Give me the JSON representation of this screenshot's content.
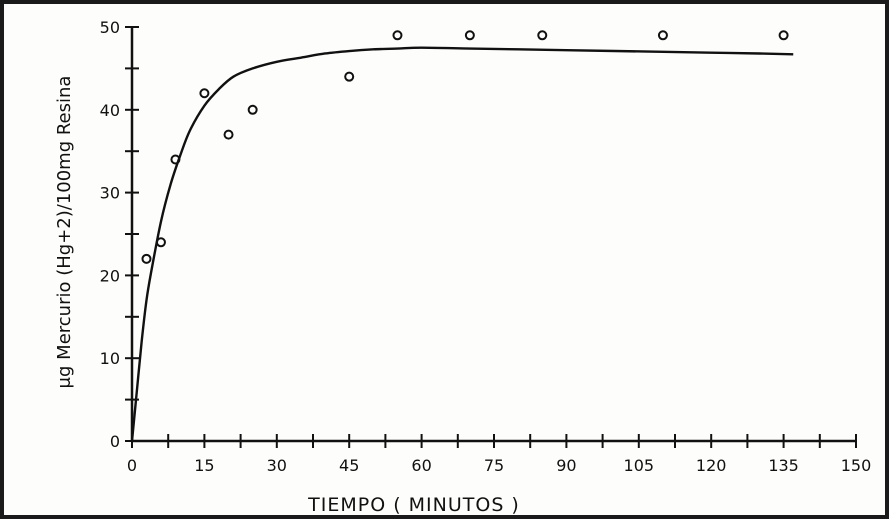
{
  "chart_data": {
    "type": "scatter",
    "xlabel": "TIEMPO ( MINUTOS )",
    "ylabel": "μg Mercurio (Hg+2)/100mg Resina",
    "xlim": [
      0,
      150
    ],
    "ylim": [
      0,
      50
    ],
    "x_ticks": [
      "0",
      "15",
      "30",
      "45",
      "60",
      "75",
      "90",
      "105",
      "120",
      "135",
      "150"
    ],
    "y_ticks": [
      "0",
      "10",
      "20",
      "30",
      "40",
      "50"
    ],
    "grid": false,
    "series": [
      {
        "kind": "points",
        "marker": "open-circle",
        "x": [
          3,
          6,
          9,
          15,
          20,
          25,
          45,
          55,
          70,
          85,
          110,
          135
        ],
        "y": [
          22,
          24,
          34,
          42,
          37,
          40,
          44,
          49,
          49,
          49,
          49,
          49
        ]
      },
      {
        "kind": "fitted-curve",
        "x": [
          0,
          1,
          2,
          3,
          4,
          6,
          8,
          10,
          12,
          15,
          18,
          21,
          25,
          30,
          35,
          40,
          45,
          50,
          55,
          60,
          70,
          80,
          90,
          100,
          110,
          120,
          130,
          137
        ],
        "y": [
          0,
          6,
          12,
          17,
          20.5,
          26.5,
          31,
          34.5,
          37.5,
          40.5,
          42.5,
          44,
          45,
          45.8,
          46.3,
          46.8,
          47.1,
          47.3,
          47.4,
          47.5,
          47.4,
          47.3,
          47.2,
          47.1,
          47,
          46.9,
          46.8,
          46.7
        ]
      }
    ]
  }
}
